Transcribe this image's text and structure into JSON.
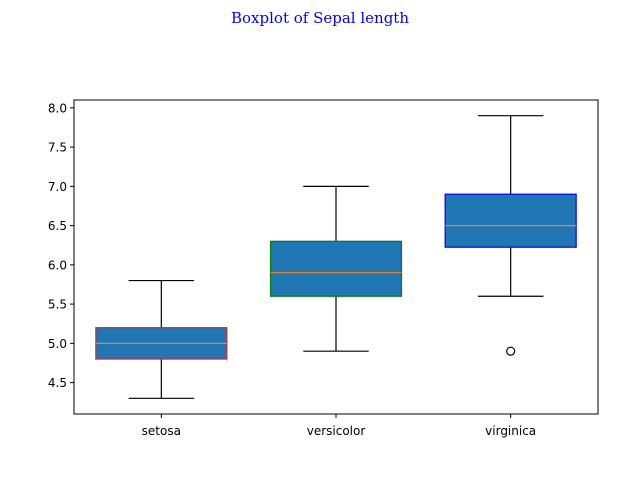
{
  "chart_data": {
    "type": "boxplot",
    "title": "Boxplot of Sepal length",
    "title_color": "#0000ff",
    "xlabel": "",
    "ylabel": "",
    "categories": [
      "setosa",
      "versicolor",
      "virginica"
    ],
    "ylim": [
      4.1,
      8.1
    ],
    "yticks": [
      "4.5",
      "5.0",
      "5.5",
      "6.0",
      "6.5",
      "7.0",
      "7.5",
      "8.0"
    ],
    "ytick_values": [
      4.5,
      5.0,
      5.5,
      6.0,
      6.5,
      7.0,
      7.5,
      8.0
    ],
    "grid": false,
    "box_fill": "#1f77b4",
    "median_color": "#ff7f0e",
    "boxes": [
      {
        "category": "setosa",
        "whisker_low": 4.3,
        "q1": 4.8,
        "median": 5.0,
        "q3": 5.2,
        "whisker_high": 5.8,
        "outliers": [],
        "edge_color": "#d62728"
      },
      {
        "category": "versicolor",
        "whisker_low": 4.9,
        "q1": 5.6,
        "median": 5.9,
        "q3": 6.3,
        "whisker_high": 7.0,
        "outliers": [],
        "edge_color": "#008000"
      },
      {
        "category": "virginica",
        "whisker_low": 5.6,
        "q1": 6.225,
        "median": 6.5,
        "q3": 6.9,
        "whisker_high": 7.9,
        "outliers": [
          4.9
        ],
        "edge_color": "#0000ff"
      }
    ]
  }
}
